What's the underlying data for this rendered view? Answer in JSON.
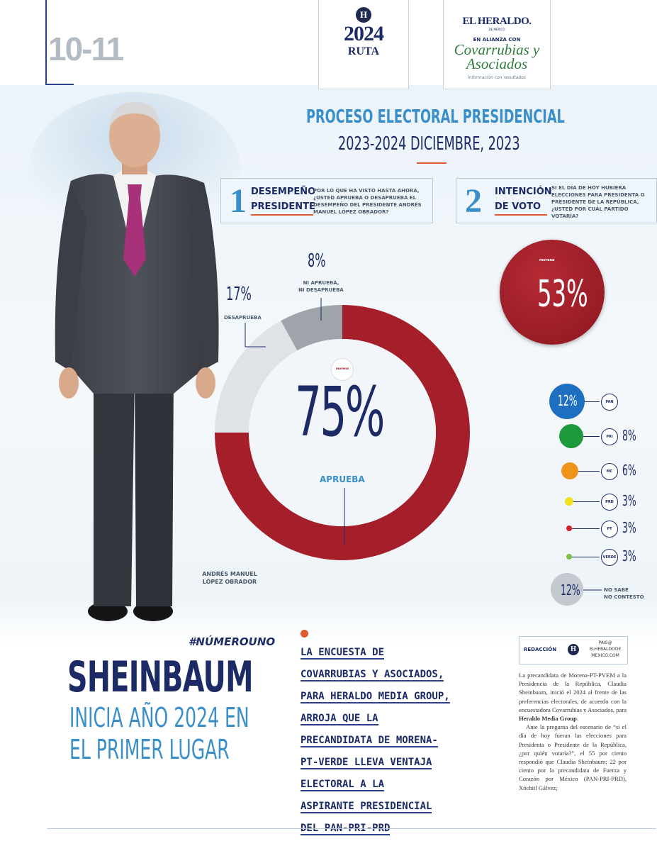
{
  "page_number": "10-11",
  "logos": {
    "ruta_h": "H",
    "ruta_year": "2024",
    "ruta_word": "RUTA",
    "heraldo_name": "EL HERALDO.",
    "heraldo_sub": "DE MÉXICO",
    "alianza": "EN ALIANZA CON",
    "covarrubias": "Covarrubias y Asociados",
    "covarrubias_tag": "Información con resultados"
  },
  "infographic": {
    "title_line1": "PROCESO ELECTORAL PRESIDENCIAL",
    "title_line2": "2023-2024 DICIEMBRE, 2023",
    "question1": {
      "number": "1",
      "title_a": "DESEMPEÑO",
      "title_b": "PRESIDENTE",
      "text": "POR LO QUE HA VISTO HASTA AHORA, ¿USTED APRUEBA O DESAPRUEBA EL DESEMPEÑO DEL PRESIDENTE ANDRÉS MANUEL LÓPEZ OBRADOR?"
    },
    "question2": {
      "number": "2",
      "title_a": "INTENCIÓN",
      "title_b": "DE VOTO",
      "text": "SI EL DÍA DE HOY HUBIERA ELECCIONES PARA PRESIDENTA O PRESIDENTE DE LA REPÚBLICA, ¿USTED POR CUÁL PARTIDO VOTARÍA?"
    },
    "approval": {
      "aprueba_pct": "75%",
      "aprueba_label": "APRUEBA",
      "desaprueba_pct": "17%",
      "desaprueba_label": "DESAPRUEBA",
      "ni_pct": "8%",
      "ni_label_a": "NI APRUEBA,",
      "ni_label_b": "NI DESAPRUEBA",
      "center_logo": "morena"
    },
    "person_caption_a": "ANDRÉS MANUEL",
    "person_caption_b": "LÓPEZ OBRADOR",
    "vote": {
      "morena_logo": "morena",
      "morena_pct": "53%",
      "parties": [
        {
          "logo": "PAN",
          "pct": "12%",
          "color": "#1f6fc0"
        },
        {
          "logo": "PRI",
          "pct": "8%",
          "color": "#1e9a3c"
        },
        {
          "logo": "MC",
          "pct": "6%",
          "color": "#f0921c"
        },
        {
          "logo": "PRD",
          "pct": "3%",
          "color": "#f3e21c"
        },
        {
          "logo": "PT",
          "pct": "3%",
          "color": "#d5202a"
        },
        {
          "logo": "VERDE",
          "pct": "3%",
          "color": "#7dbf3f"
        }
      ],
      "nosabe_pct": "12%",
      "nosabe_label_a": "NO SABE",
      "nosabe_label_b": "NO CONTESTÓ"
    }
  },
  "chart_data": [
    {
      "type": "pie",
      "categories": [
        "APRUEBA",
        "DESAPRUEBA",
        "NI APRUEBA, NI DESAPRUEBA"
      ],
      "values": [
        75,
        17,
        8
      ],
      "colors": [
        "#a51f2b",
        "#dfe3e7",
        "#9ea4aa"
      ]
    },
    {
      "type": "bar",
      "categories": [
        "morena",
        "PAN",
        "PRI",
        "MC",
        "PRD",
        "PT",
        "VERDE",
        "NO SABE / NO CONTESTÓ"
      ],
      "values": [
        53,
        12,
        8,
        6,
        3,
        3,
        3,
        12
      ]
    }
  ],
  "article": {
    "hashtag": "#NÚMEROUNO",
    "headline_a": "SHEINBAUM",
    "headline_b": "INICIA AÑO 2024 EN",
    "headline_c": "EL PRIMER LUGAR",
    "subhead_lines": [
      "LA ENCUESTA DE",
      "COVARRUBIAS Y ASOCIADOS,",
      "PARA HERALDO MEDIA GROUP,",
      "ARROJA QUE LA",
      "PRECANDIDATA DE MORENA-",
      "PT-VERDE LLEVA VENTAJA",
      "ELECTORAL A LA",
      "ASPIRANTE PRESIDENCIAL",
      "DEL PAN-PRI-PRD"
    ],
    "byline": "REDACCIÓN",
    "byline_h": "H",
    "email_a": "PAIS@",
    "email_b": "ELHERALDODE",
    "email_c": "MEXICO.COM",
    "para1_a": "La precandidata de Morena-PT-PVEM a la Presidencia de la República, Claudia Sheinbaum, inició el 2024 al frente de las preferencias electorales, de acuerdo con la encuestadora Covarrubias y Asociados, para ",
    "para1_bold": "Heraldo Media Group",
    "para1_end": ".",
    "para2": "Ante la pregunta del escenario de “si el día de hoy fueran las elecciones para Presidenta o Presidente de la República, ¿por quién votaría?”, el 55 por ciento respondió que Claudia Sheinbaum; 22 por ciento por la precandidata de Fuerza y Corazón por México (PAN-PRI-PRD), Xóchitl Gálvez;"
  }
}
